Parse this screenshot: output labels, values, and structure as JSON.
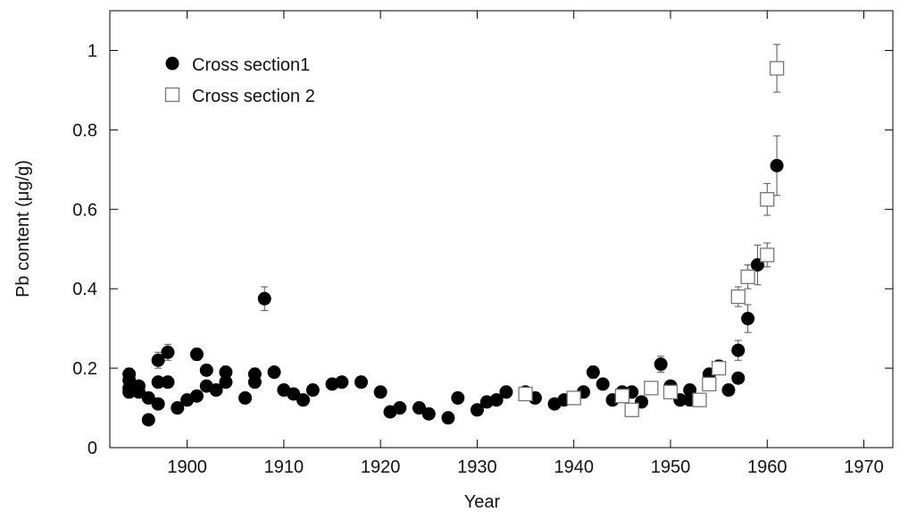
{
  "chart_data": {
    "type": "scatter",
    "xlabel": "Year",
    "ylabel": "Pb content (μg/g)",
    "xlim": [
      1892,
      1973
    ],
    "ylim": [
      0,
      1.1
    ],
    "xticks": [
      1900,
      1910,
      1920,
      1930,
      1940,
      1950,
      1960,
      1970
    ],
    "yticks": [
      0,
      0.2,
      0.4,
      0.6,
      0.8,
      1
    ],
    "legend": "upper left",
    "series": [
      {
        "name": "Cross section1",
        "marker": "circle",
        "color": "#000000",
        "x": [
          1894,
          1894,
          1894,
          1894,
          1895,
          1895,
          1896,
          1896,
          1897,
          1897,
          1897,
          1898,
          1898,
          1899,
          1900,
          1901,
          1901,
          1902,
          1902,
          1903,
          1904,
          1904,
          1906,
          1907,
          1907,
          1908,
          1909,
          1910,
          1911,
          1912,
          1913,
          1915,
          1916,
          1918,
          1920,
          1921,
          1922,
          1924,
          1925,
          1927,
          1928,
          1930,
          1931,
          1932,
          1933,
          1935,
          1936,
          1938,
          1939,
          1941,
          1942,
          1943,
          1944,
          1945,
          1946,
          1947,
          1949,
          1950,
          1951,
          1952,
          1952,
          1954,
          1955,
          1956,
          1957,
          1957,
          1958,
          1959,
          1961
        ],
        "values": [
          0.185,
          0.17,
          0.15,
          0.14,
          0.155,
          0.14,
          0.07,
          0.125,
          0.22,
          0.165,
          0.11,
          0.24,
          0.165,
          0.1,
          0.12,
          0.235,
          0.13,
          0.195,
          0.155,
          0.145,
          0.19,
          0.165,
          0.125,
          0.185,
          0.165,
          0.375,
          0.19,
          0.145,
          0.135,
          0.12,
          0.145,
          0.16,
          0.165,
          0.165,
          0.14,
          0.09,
          0.1,
          0.1,
          0.085,
          0.075,
          0.125,
          0.095,
          0.115,
          0.12,
          0.14,
          0.14,
          0.125,
          0.11,
          0.12,
          0.14,
          0.19,
          0.16,
          0.12,
          0.14,
          0.14,
          0.115,
          0.21,
          0.155,
          0.12,
          0.145,
          0.12,
          0.185,
          0.205,
          0.145,
          0.245,
          0.175,
          0.325,
          0.46,
          0.71
        ],
        "errors": [
          0.015,
          null,
          null,
          null,
          null,
          null,
          null,
          null,
          0.02,
          null,
          null,
          0.02,
          null,
          null,
          null,
          0.015,
          null,
          null,
          null,
          null,
          0.015,
          null,
          null,
          0.015,
          null,
          0.03,
          null,
          null,
          null,
          null,
          null,
          null,
          null,
          null,
          null,
          null,
          null,
          null,
          null,
          null,
          null,
          null,
          null,
          null,
          null,
          null,
          null,
          null,
          null,
          null,
          0.015,
          null,
          null,
          null,
          null,
          null,
          0.02,
          null,
          null,
          null,
          null,
          null,
          0.015,
          null,
          0.025,
          null,
          0.035,
          0.05,
          0.075
        ]
      },
      {
        "name": "Cross section 2",
        "marker": "square",
        "color": "#777777",
        "x": [
          1935,
          1940,
          1945,
          1946,
          1948,
          1950,
          1953,
          1954,
          1955,
          1957,
          1958,
          1960,
          1960,
          1961
        ],
        "values": [
          0.135,
          0.125,
          0.13,
          0.095,
          0.15,
          0.14,
          0.12,
          0.16,
          0.2,
          0.38,
          0.43,
          0.485,
          0.625,
          0.955
        ],
        "errors": [
          null,
          null,
          null,
          null,
          null,
          null,
          null,
          null,
          0.015,
          0.025,
          0.03,
          0.03,
          0.04,
          0.06
        ]
      }
    ]
  }
}
